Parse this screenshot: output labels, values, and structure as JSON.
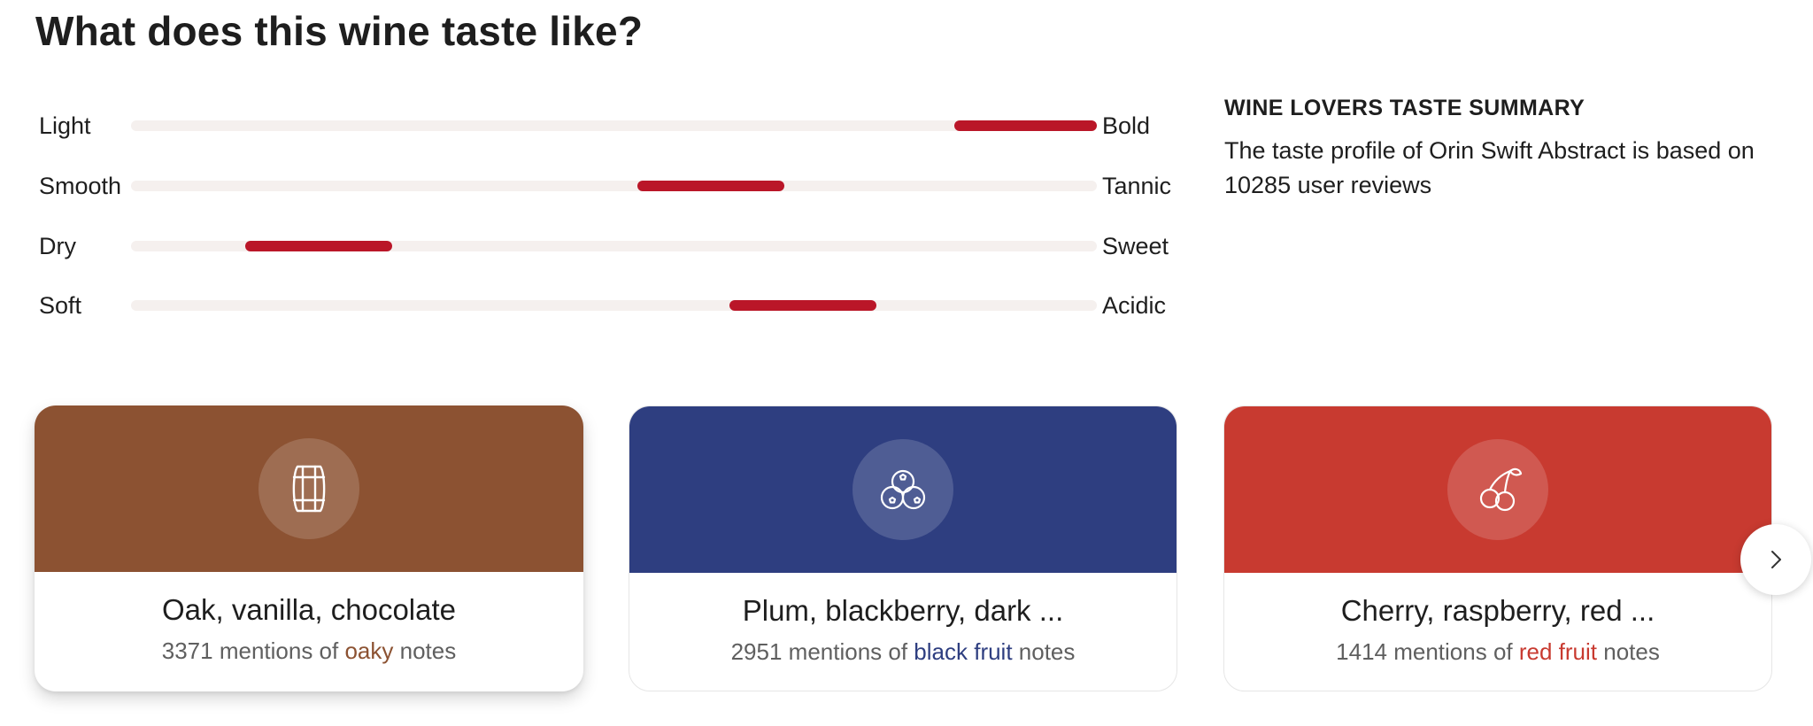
{
  "page_title": "What does this wine taste like?",
  "scales": [
    {
      "left": "Light",
      "right": "Bold",
      "start_fraction": 0.852,
      "end_fraction": 1.0
    },
    {
      "left": "Smooth",
      "right": "Tannic",
      "start_fraction": 0.524,
      "end_fraction": 0.676
    },
    {
      "left": "Dry",
      "right": "Sweet",
      "start_fraction": 0.118,
      "end_fraction": 0.27
    },
    {
      "left": "Soft",
      "right": "Acidic",
      "start_fraction": 0.62,
      "end_fraction": 0.772
    }
  ],
  "summary": {
    "heading": "WINE LOVERS TASTE SUMMARY",
    "text": "The taste profile of Orin Swift Abstract is based on 10285 user reviews"
  },
  "cards": [
    {
      "title": "Oak, vanilla, chocolate",
      "count": "3371",
      "pre": " mentions of ",
      "keyword": "oaky",
      "post": " notes",
      "color": "#8c5232",
      "icon": "barrel-icon"
    },
    {
      "title": "Plum, blackberry, dark ...",
      "count": "2951",
      "pre": " mentions of ",
      "keyword": "black fruit",
      "post": " notes",
      "color": "#2e3e80",
      "icon": "berries-icon"
    },
    {
      "title": "Cherry, raspberry, red ...",
      "count": "1414",
      "pre": " mentions of ",
      "keyword": "red fruit",
      "post": " notes",
      "color": "#c83a30",
      "icon": "cherry-icon"
    }
  ],
  "next_icon": "chevron-right-icon"
}
